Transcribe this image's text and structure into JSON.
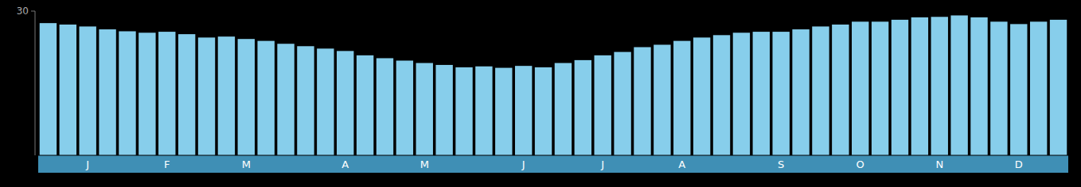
{
  "chart_data": {
    "type": "bar",
    "categories": [
      null,
      null,
      "J",
      null,
      null,
      null,
      "F",
      null,
      null,
      null,
      "M",
      null,
      null,
      null,
      null,
      "A",
      null,
      null,
      null,
      "M",
      null,
      null,
      null,
      null,
      "J",
      null,
      null,
      null,
      "J",
      null,
      null,
      null,
      "A",
      null,
      null,
      null,
      null,
      "S",
      null,
      null,
      null,
      "O",
      null,
      null,
      null,
      "N",
      null,
      null,
      null,
      "D",
      null,
      null
    ],
    "values": [
      27.5,
      27.2,
      26.8,
      26.2,
      25.8,
      25.5,
      25.7,
      25.2,
      24.5,
      24.7,
      24.2,
      23.8,
      23.2,
      22.7,
      22.2,
      21.7,
      20.8,
      20.2,
      19.7,
      19.2,
      18.8,
      18.3,
      18.5,
      18.2,
      18.6,
      18.3,
      19.2,
      19.8,
      20.8,
      21.5,
      22.5,
      23.0,
      23.8,
      24.5,
      25.0,
      25.5,
      25.7,
      25.7,
      26.2,
      26.8,
      27.2,
      27.8,
      27.8,
      28.2,
      28.7,
      28.8,
      29.1,
      28.7,
      27.8,
      27.3,
      27.8,
      28.2
    ],
    "color": "#87CEEB",
    "ylim": [
      0,
      30
    ],
    "yticks": [
      30
    ],
    "grid": false
  }
}
